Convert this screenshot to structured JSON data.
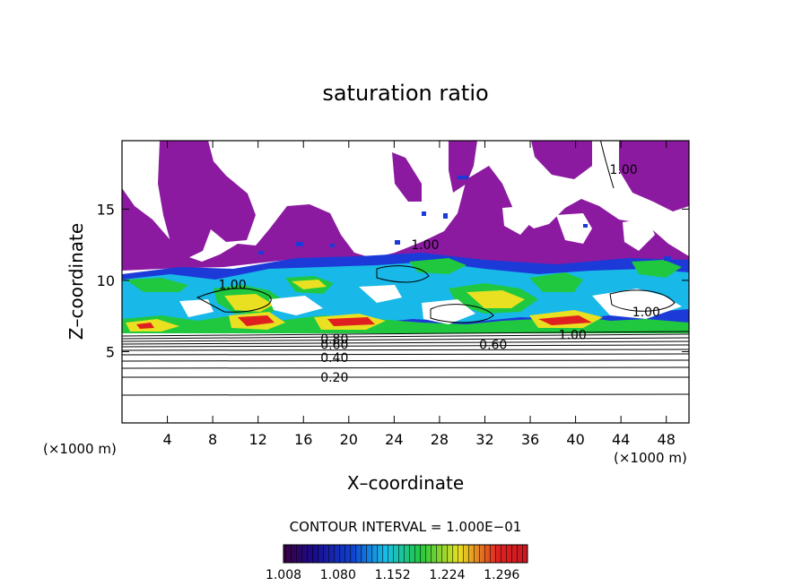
{
  "chart_data": {
    "type": "heatmap",
    "title": "saturation ratio",
    "xlabel": "X–coordinate",
    "ylabel": "Z–coordinate",
    "x_unit_left": "(×1000 m)",
    "x_unit_right": "(×1000 m)",
    "xlim": [
      0,
      50
    ],
    "ylim": [
      0,
      19.8
    ],
    "x_ticks": [
      4,
      8,
      12,
      16,
      20,
      24,
      28,
      32,
      36,
      40,
      44,
      48
    ],
    "y_ticks": [
      5,
      10,
      15
    ],
    "contour_note": "CONTOUR INTERVAL = 1.000E−01",
    "contour_labels": [
      {
        "text": "0.20",
        "x": 17.5,
        "y": 3.2
      },
      {
        "text": "0.40",
        "x": 17.5,
        "y": 4.6
      },
      {
        "text": "0.60",
        "x": 17.5,
        "y": 5.5
      },
      {
        "text": "0.80",
        "x": 17.5,
        "y": 5.9
      },
      {
        "text": "0.60",
        "x": 31.5,
        "y": 5.5
      },
      {
        "text": "1.00",
        "x": 38.5,
        "y": 6.2
      },
      {
        "text": "1.00",
        "x": 25.5,
        "y": 12.5
      },
      {
        "text": "1.00",
        "x": 8.5,
        "y": 9.7
      },
      {
        "text": "1.00",
        "x": 45.0,
        "y": 7.8
      },
      {
        "text": "1.00",
        "x": 43.0,
        "y": 17.8
      }
    ],
    "colorbar": {
      "ticks": [
        "1.008",
        "1.080",
        "1.152",
        "1.224",
        "1.296"
      ],
      "range": [
        1.008,
        1.33
      ],
      "colors": [
        "#3a0040",
        "#1a0a8a",
        "#1040d0",
        "#18c0e8",
        "#20c840",
        "#e8e020",
        "#e02020",
        "#c81820"
      ]
    },
    "colors": {
      "dry_fill": "#8c1aa0",
      "background": "#ffffff"
    },
    "grid": false,
    "legend_position": "bottom"
  }
}
